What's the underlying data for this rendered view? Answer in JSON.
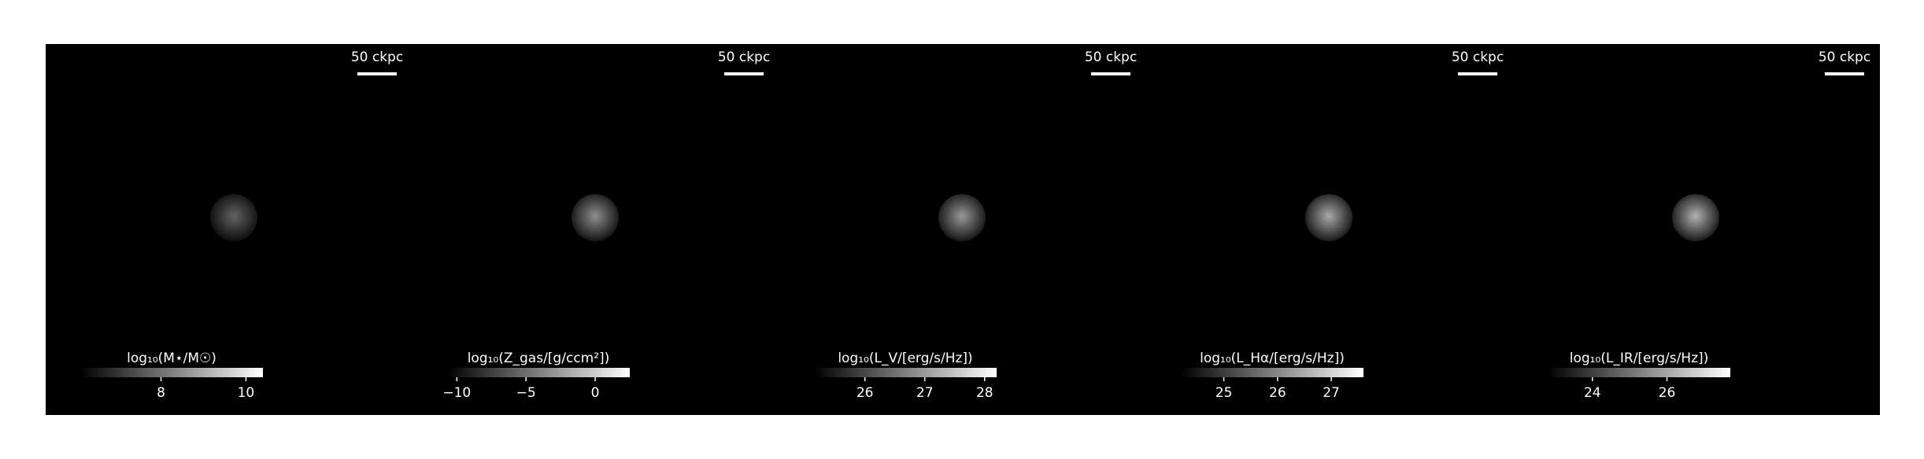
{
  "panels": [
    {
      "label": "log₁₀(M⋆/M☉)",
      "scale_label": "50 ckpc",
      "clim": [
        6.1,
        10.4
      ],
      "ticks": [
        8,
        10
      ]
    },
    {
      "label": "log₁₀(Z_gas/[g/ccm²])",
      "scale_label": "50 ckpc",
      "clim": [
        -10.7,
        2.5
      ],
      "ticks": [
        {
          "value": -10,
          "label": "−10"
        },
        {
          "value": -5,
          "label": "−5"
        },
        0
      ]
    },
    {
      "label": "log₁₀(L_V/[erg/s/Hz])",
      "scale_label": "50 ckpc",
      "clim": [
        25.15,
        28.2
      ],
      "ticks": [
        26,
        27,
        28
      ]
    },
    {
      "label": "log₁₀(L_Hα/[erg/s/Hz])",
      "scale_label": "50 ckpc",
      "clim": [
        24.2,
        27.6
      ],
      "ticks": [
        25,
        26,
        27
      ]
    },
    {
      "label": "log₁₀(L_IR/[erg/s/Hz])",
      "scale_label": "50 ckpc",
      "clim": [
        22.8,
        27.7
      ],
      "ticks": [
        24,
        26
      ]
    }
  ]
}
